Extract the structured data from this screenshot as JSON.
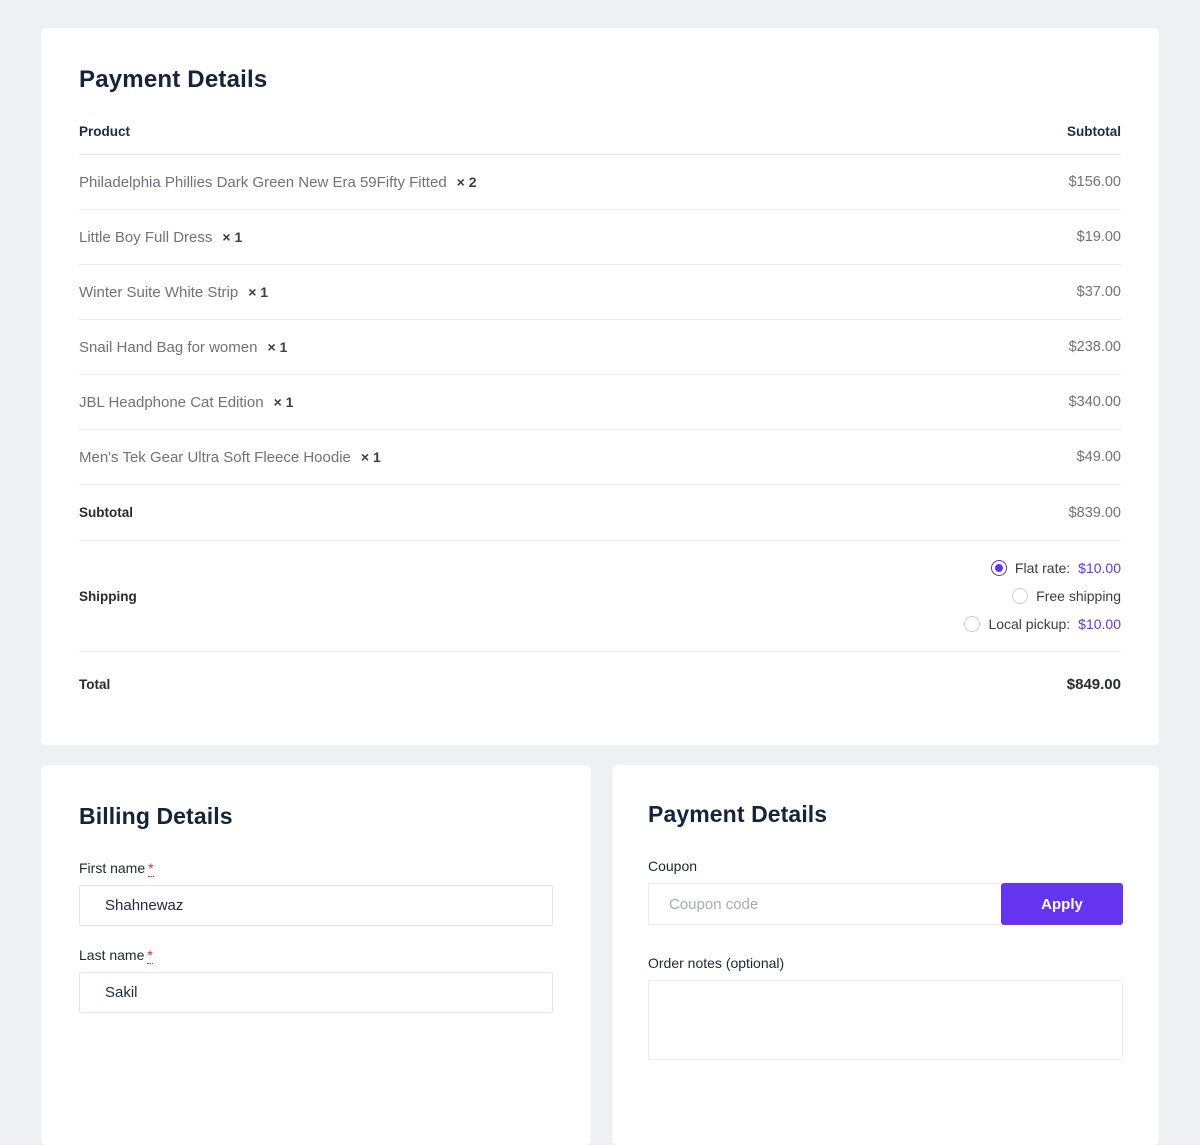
{
  "order_summary": {
    "title": "Payment Details",
    "columns": {
      "product": "Product",
      "subtotal": "Subtotal"
    },
    "items": [
      {
        "name": "Philadelphia Phillies Dark Green New Era 59Fifty Fitted",
        "qty": "× 2",
        "subtotal": "$156.00"
      },
      {
        "name": "Little Boy Full Dress",
        "qty": "× 1",
        "subtotal": "$19.00"
      },
      {
        "name": "Winter Suite White Strip",
        "qty": "× 1",
        "subtotal": "$37.00"
      },
      {
        "name": "Snail Hand Bag for women",
        "qty": "× 1",
        "subtotal": "$238.00"
      },
      {
        "name": "JBL Headphone Cat Edition",
        "qty": "× 1",
        "subtotal": "$340.00"
      },
      {
        "name": "Men's Tek Gear Ultra Soft Fleece Hoodie",
        "qty": "× 1",
        "subtotal": "$49.00"
      }
    ],
    "subtotal_row": {
      "label": "Subtotal",
      "value": "$839.00"
    },
    "shipping": {
      "label": "Shipping",
      "options": [
        {
          "label": "Flat rate:",
          "price": "$10.00",
          "selected": true
        },
        {
          "label": "Free shipping",
          "price": "",
          "selected": false
        },
        {
          "label": "Local pickup:",
          "price": "$10.00",
          "selected": false
        }
      ]
    },
    "total_row": {
      "label": "Total",
      "value": "$849.00"
    }
  },
  "billing": {
    "title": "Billing Details",
    "fields": [
      {
        "label": "First name",
        "required": "*",
        "value": "Shahnewaz"
      },
      {
        "label": "Last name",
        "required": "*",
        "value": "Sakil"
      }
    ]
  },
  "payment": {
    "title": "Payment Details",
    "coupon": {
      "label": "Coupon",
      "placeholder": "Coupon code",
      "apply_label": "Apply"
    },
    "order_notes": {
      "label": "Order notes (optional)",
      "value": ""
    }
  },
  "colors": {
    "accent_purple": "#6434f0",
    "required_red": "#e02b20",
    "page_background": "#eef0f3"
  }
}
